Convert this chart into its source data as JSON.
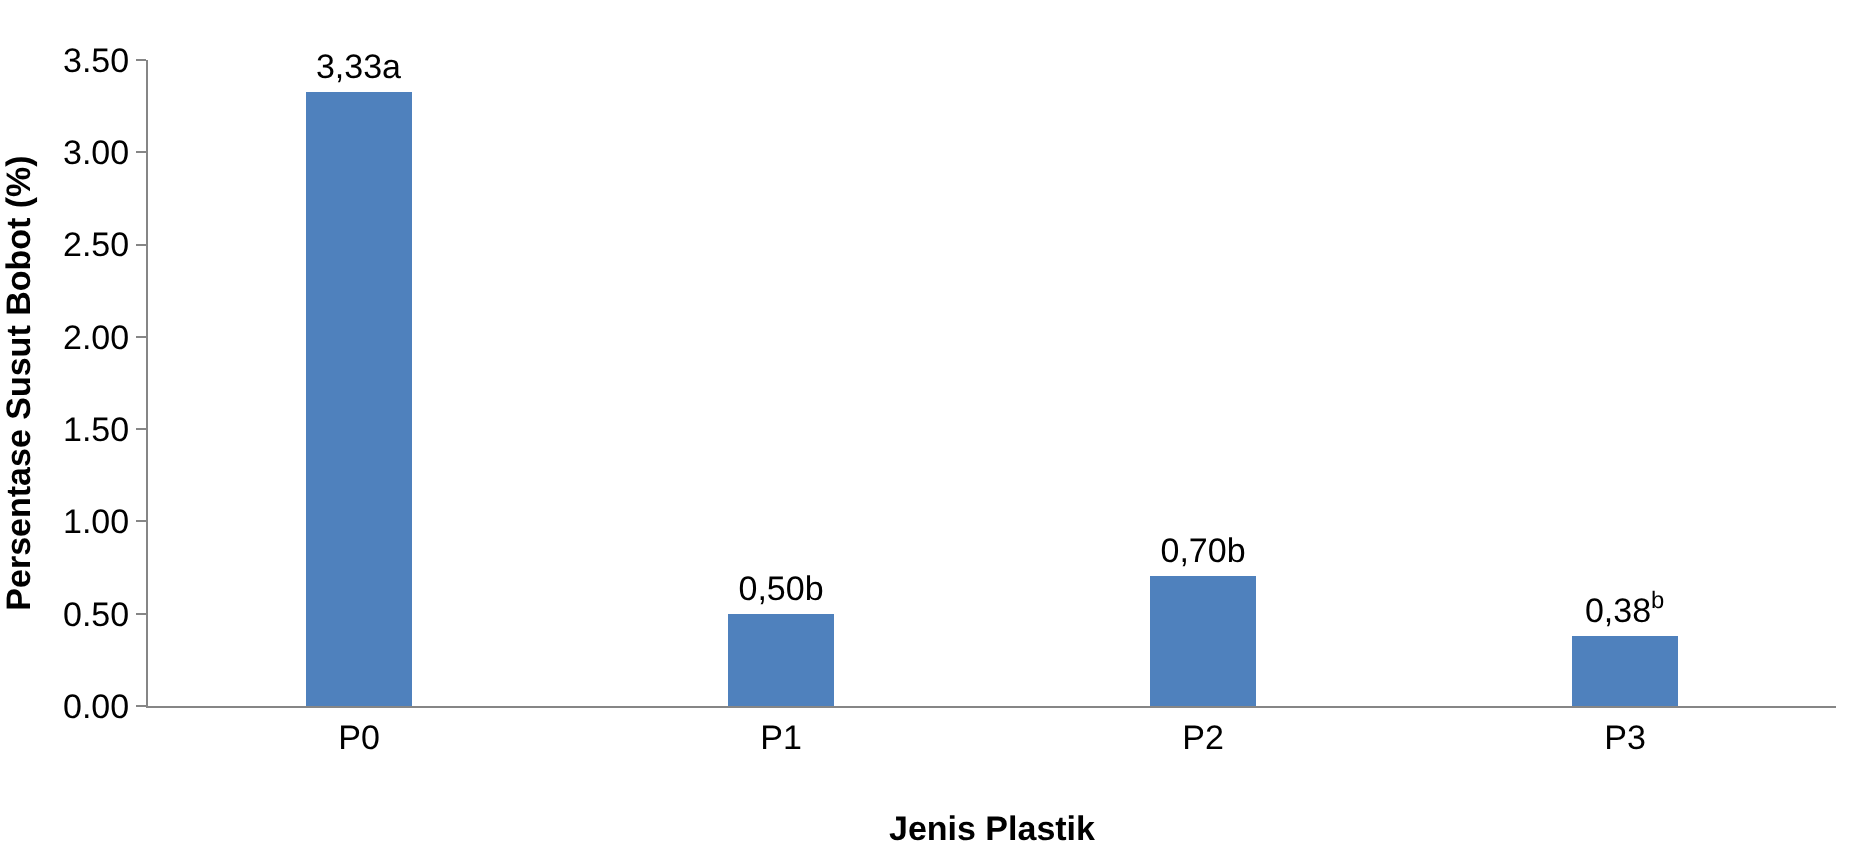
{
  "chart_data": {
    "type": "bar",
    "xlabel": "Jenis Plastik",
    "ylabel": "Persentase Susut Bobot (%)",
    "categories": [
      "P0",
      "P1",
      "P2",
      "P3"
    ],
    "values": [
      3.33,
      0.5,
      0.7,
      0.38
    ],
    "value_labels": [
      "3,33a",
      "0,50b",
      "0,70b",
      "0,38$^{b}$"
    ],
    "color": "#4f81bd",
    "ylim": [
      0,
      3.5
    ],
    "yticks": [
      {
        "value": 0,
        "label": "0.00"
      },
      {
        "value": 0.5,
        "label": "0.50"
      },
      {
        "value": 1,
        "label": "1.00"
      },
      {
        "value": 1.5,
        "label": "1.50"
      },
      {
        "value": 2,
        "label": "2.00"
      },
      {
        "value": 2.5,
        "label": "2.50"
      },
      {
        "value": 3,
        "label": "3.00"
      },
      {
        "value": 3.5,
        "label": "3.50"
      }
    ],
    "grid": false
  }
}
